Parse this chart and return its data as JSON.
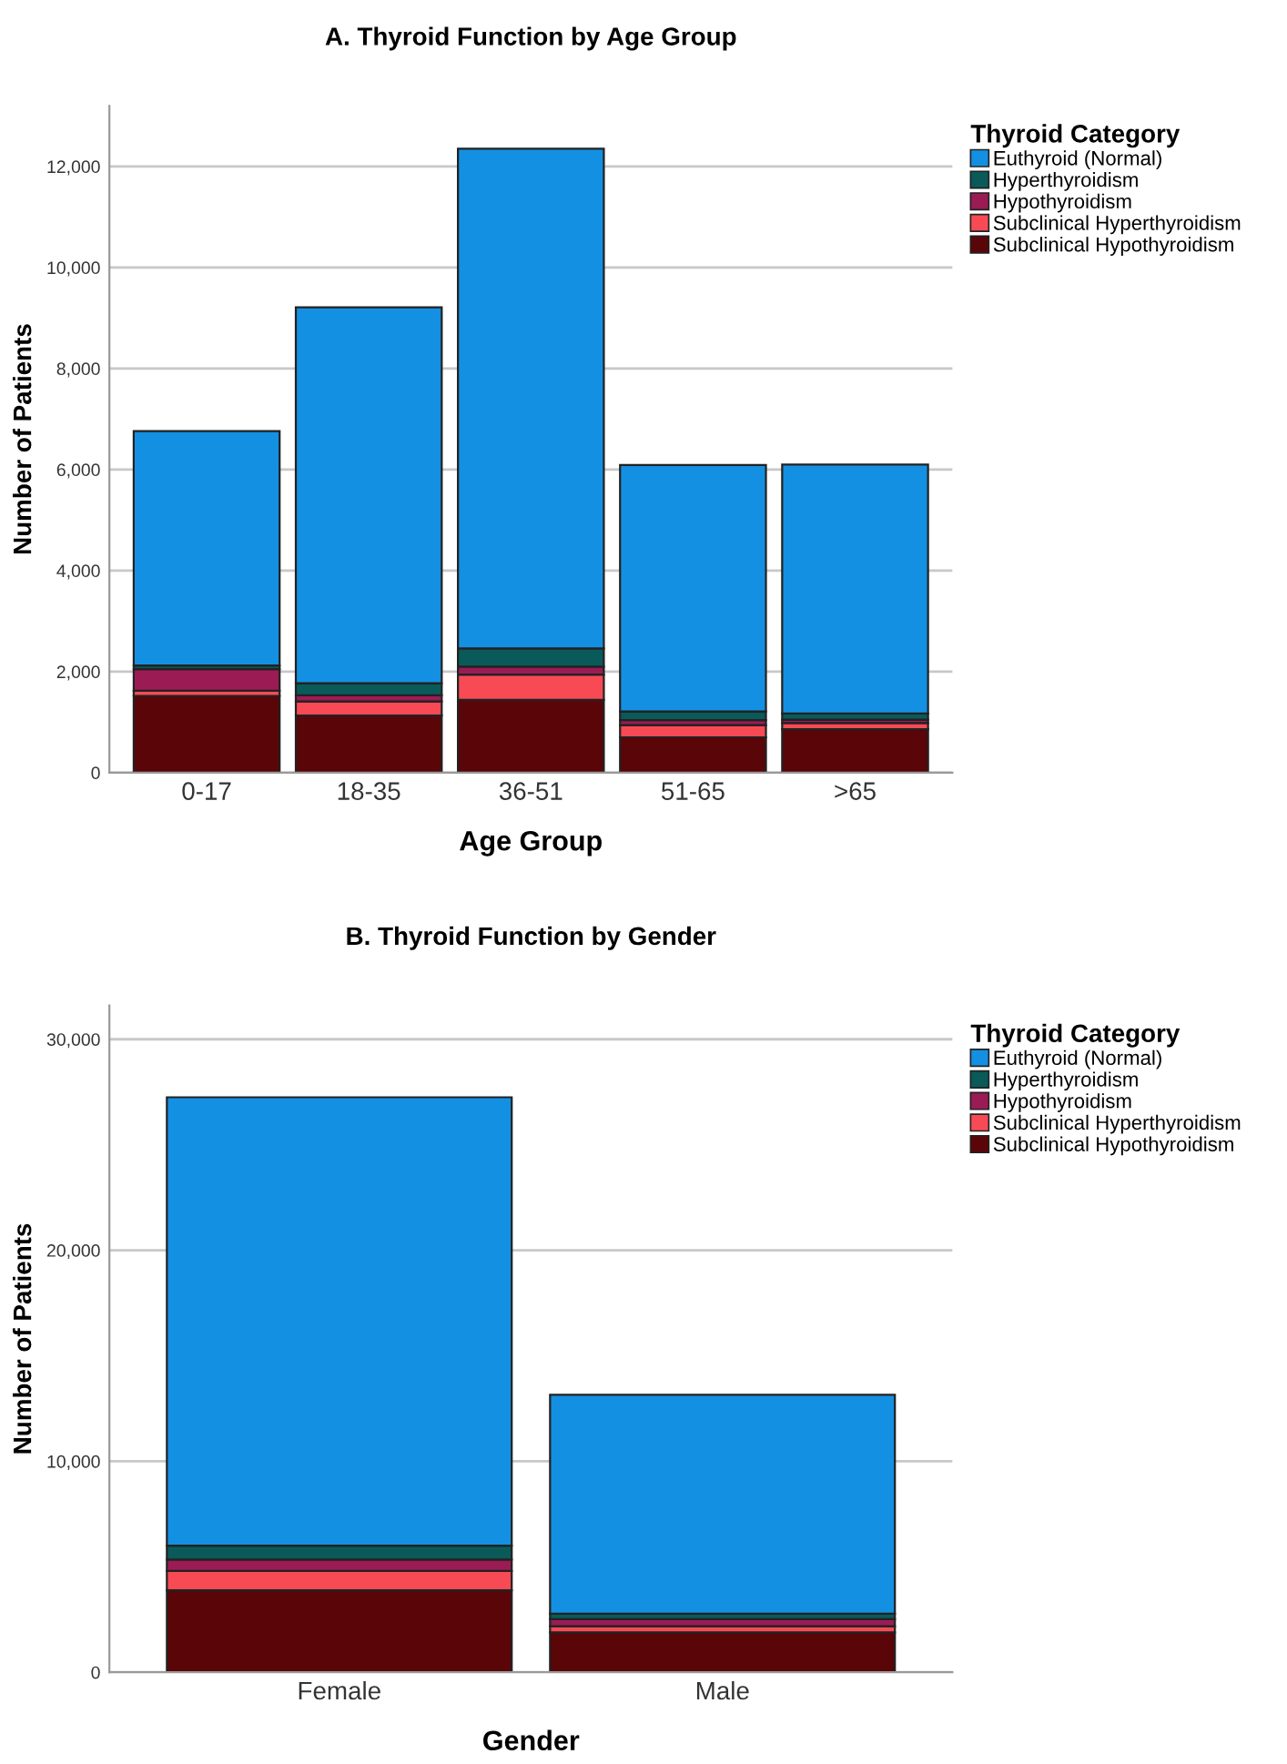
{
  "chart_data": [
    {
      "type": "bar",
      "title": "A. Thyroid Function by Age Group",
      "xlabel": "Age Group",
      "ylabel": "Number of Patients",
      "legend_title": "Thyroid Category",
      "categories": [
        "0-17",
        "18-35",
        "36-51",
        "51-65",
        ">65"
      ],
      "stacked": true,
      "ylim": [
        0,
        13200
      ],
      "yticks": [
        {
          "value": 0,
          "label": "0"
        },
        {
          "value": 2000,
          "label": "2,000"
        },
        {
          "value": 4000,
          "label": "4,000"
        },
        {
          "value": 6000,
          "label": "6,000"
        },
        {
          "value": 8000,
          "label": "8,000"
        },
        {
          "value": 10000,
          "label": "10,000"
        },
        {
          "value": 12000,
          "label": "12,000"
        }
      ],
      "grid": "y",
      "legend": "top right",
      "series": [
        {
          "name": "Subclinical Hypothyroidism",
          "color": "#5a0508",
          "values": [
            1520,
            1130,
            1440,
            700,
            860
          ]
        },
        {
          "name": "Subclinical Hyperthyroidism",
          "color": "#f84a55",
          "values": [
            100,
            280,
            500,
            240,
            120
          ]
        },
        {
          "name": "Hypothyroidism",
          "color": "#9b1b55",
          "values": [
            430,
            120,
            160,
            100,
            70
          ]
        },
        {
          "name": "Hyperthyroidism",
          "color": "#0a5a5a",
          "values": [
            70,
            240,
            360,
            170,
            120
          ]
        },
        {
          "name": "Euthyroid (Normal)",
          "color": "#1490e3",
          "values": [
            4640,
            7440,
            9890,
            4880,
            4930
          ]
        }
      ]
    },
    {
      "type": "bar",
      "title": "B. Thyroid Function by Gender",
      "xlabel": "Gender",
      "ylabel": "Number of Patients",
      "legend_title": "Thyroid Category",
      "categories": [
        "Female",
        "Male"
      ],
      "stacked": true,
      "ylim": [
        0,
        31600
      ],
      "yticks": [
        {
          "value": 0,
          "label": "0"
        },
        {
          "value": 10000,
          "label": "10,000"
        },
        {
          "value": 20000,
          "label": "20,000"
        },
        {
          "value": 30000,
          "label": "30,000"
        }
      ],
      "grid": "y",
      "legend": "top right",
      "series": [
        {
          "name": "Subclinical Hypothyroidism",
          "color": "#5a0508",
          "values": [
            3890,
            1890
          ]
        },
        {
          "name": "Subclinical Hyperthyroidism",
          "color": "#f84a55",
          "values": [
            910,
            290
          ]
        },
        {
          "name": "Hypothyroidism",
          "color": "#9b1b55",
          "values": [
            540,
            340
          ]
        },
        {
          "name": "Hyperthyroidism",
          "color": "#0a5a5a",
          "values": [
            660,
            260
          ]
        },
        {
          "name": "Euthyroid (Normal)",
          "color": "#1490e3",
          "values": [
            21250,
            10370
          ]
        }
      ]
    }
  ]
}
